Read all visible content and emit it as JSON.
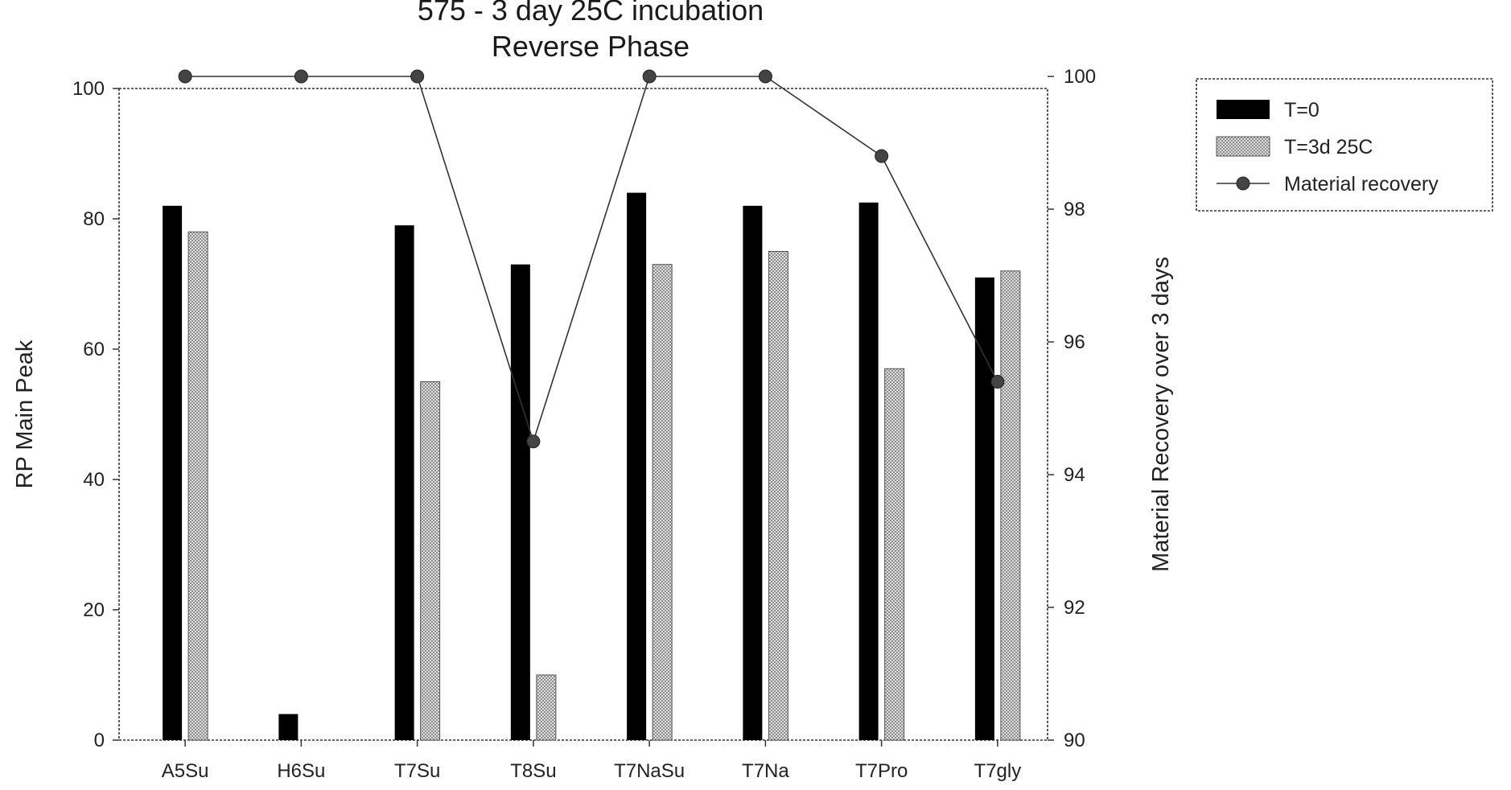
{
  "chart_data": {
    "type": "bar",
    "title": "575  - 3 day 25C incubation",
    "subtitle": "Reverse Phase",
    "categories": [
      "A5Su",
      "H6Su",
      "T7Su",
      "T8Su",
      "T7NaSu",
      "T7Na",
      "T7Pro",
      "T7gly"
    ],
    "ylabel": "RP Main Peak",
    "ylim": [
      0,
      100
    ],
    "yticks": [
      "0",
      "20",
      "40",
      "60",
      "80",
      "100"
    ],
    "y2label": "Material Recovery over 3 days",
    "y2lim": [
      90,
      101.2
    ],
    "y2ticks": [
      "90",
      "92",
      "94",
      "96",
      "98",
      "100"
    ],
    "series": [
      {
        "name": "T=0",
        "kind": "bar",
        "color": "#000000",
        "values": [
          82,
          4,
          79,
          73,
          84,
          82,
          82.5,
          71
        ]
      },
      {
        "name": "T=3d 25C",
        "kind": "bar",
        "color": "#c8c8c8",
        "values": [
          78,
          null,
          55,
          10,
          73,
          75,
          57,
          72
        ]
      },
      {
        "name": "Material recovery",
        "kind": "line",
        "axis": "right",
        "color": "#333333",
        "values": [
          100,
          100,
          100,
          94.5,
          100,
          100,
          98.8,
          95.4
        ]
      }
    ],
    "legend_position": "top-right, outside plot",
    "grid": false
  }
}
